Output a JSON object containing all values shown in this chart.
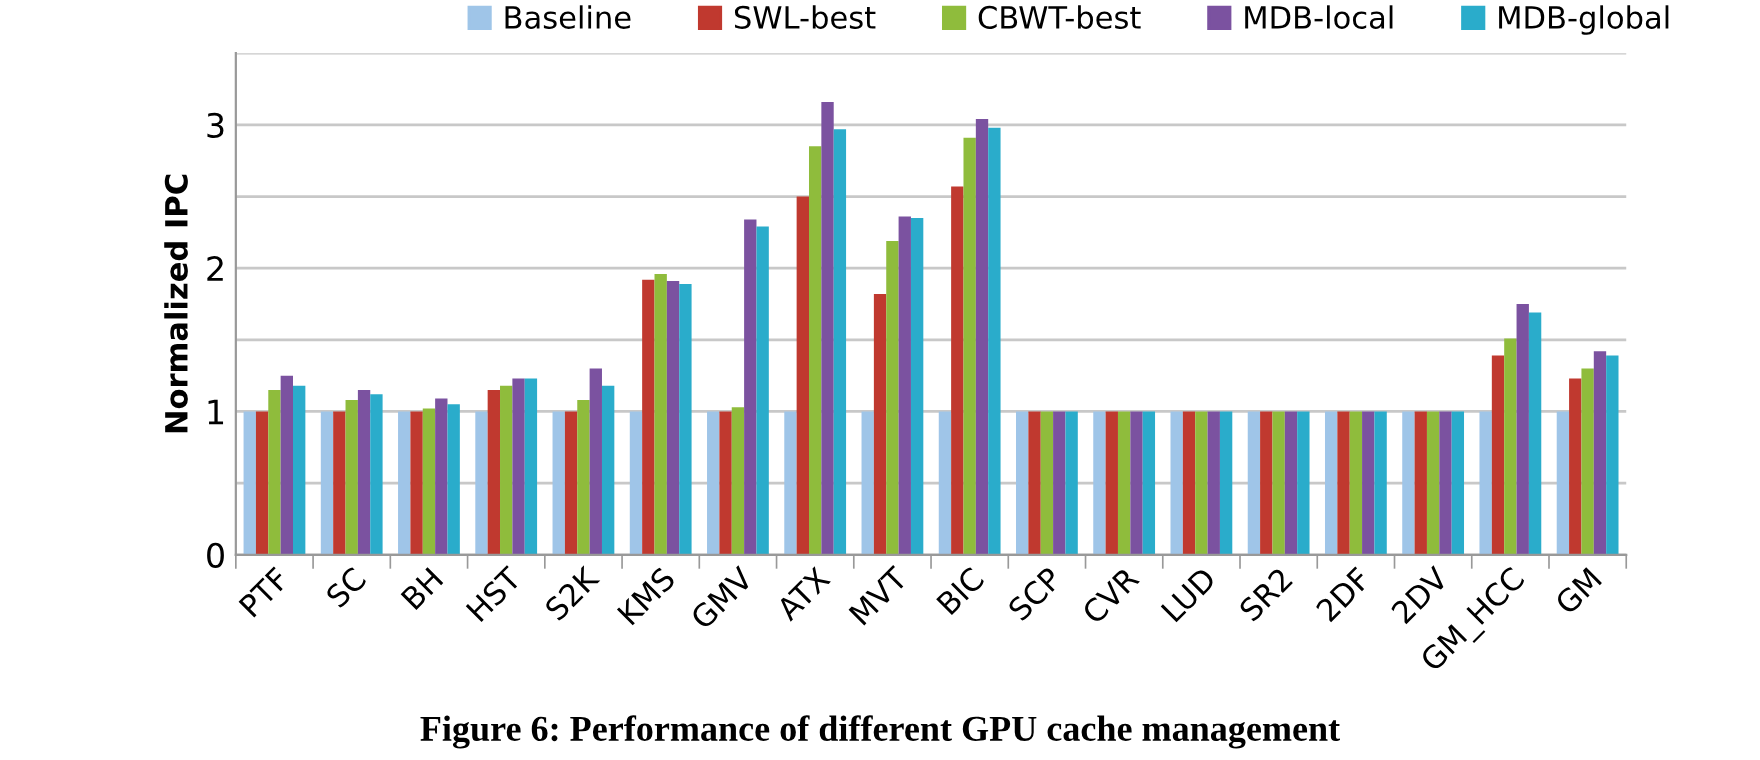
{
  "chart_data": {
    "type": "bar",
    "ylabel": "Normalized IPC",
    "categories": [
      "PTF",
      "SC",
      "BH",
      "HST",
      "S2K",
      "KMS",
      "GMV",
      "ATX",
      "MVT",
      "BIC",
      "SCP",
      "CVR",
      "LUD",
      "SR2",
      "2DF",
      "2DV",
      "GM_HCC",
      "GM"
    ],
    "series": [
      {
        "name": "Baseline",
        "color": "#9fc5e8",
        "values": [
          1,
          1,
          1,
          1,
          1,
          1,
          1,
          1,
          1,
          1,
          1,
          1,
          1,
          1,
          1,
          1,
          1,
          1
        ]
      },
      {
        "name": "SWL-best",
        "color": "#c0392f",
        "values": [
          1.0,
          1.0,
          1.0,
          1.15,
          1.0,
          1.92,
          1.0,
          2.5,
          1.82,
          2.57,
          1,
          1,
          1,
          1,
          1,
          1,
          1.39,
          1.23
        ]
      },
      {
        "name": "CBWT-best",
        "color": "#8fbc3c",
        "values": [
          1.15,
          1.08,
          1.02,
          1.18,
          1.08,
          1.96,
          1.03,
          2.85,
          2.19,
          2.91,
          1,
          1,
          1,
          1,
          1,
          1,
          1.51,
          1.3
        ]
      },
      {
        "name": "MDB-local",
        "color": "#7b52a0",
        "values": [
          1.25,
          1.15,
          1.09,
          1.23,
          1.3,
          1.91,
          2.34,
          3.16,
          2.36,
          3.04,
          1,
          1,
          1,
          1,
          1,
          1,
          1.75,
          1.42
        ]
      },
      {
        "name": "MDB-global",
        "color": "#2aaccb",
        "values": [
          1.18,
          1.12,
          1.05,
          1.23,
          1.18,
          1.89,
          2.29,
          2.97,
          2.35,
          2.98,
          1,
          1,
          1,
          1,
          1,
          1,
          1.69,
          1.39
        ]
      }
    ],
    "ylim": [
      0,
      3.5
    ],
    "yticks": [
      0,
      {
        "value": 0.5,
        "label": null
      },
      1,
      {
        "value": 1.5,
        "label": null
      },
      2,
      {
        "value": 2.5,
        "label": null
      },
      3,
      {
        "value": 3.5,
        "label": null
      }
    ],
    "grid": "y",
    "legend": "top",
    "annotations": [
      "Figure 6: Performance of different GPU cache management"
    ]
  }
}
